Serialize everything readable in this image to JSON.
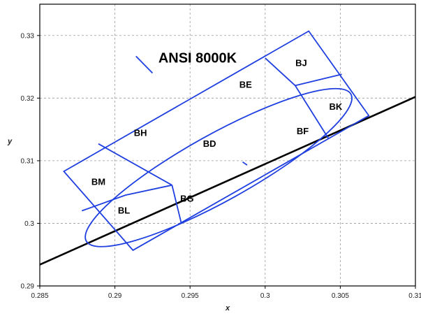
{
  "chart_data": {
    "type": "line",
    "title": "ANSI 8000K",
    "xlabel": "x",
    "ylabel": "y",
    "xlim": [
      0.285,
      0.31
    ],
    "ylim": [
      0.29,
      0.335
    ],
    "x_ticks": [
      0.285,
      0.29,
      0.295,
      0.3,
      0.305,
      0.31
    ],
    "x_tick_labels": [
      "0.285",
      "0.29",
      "0.295",
      "0.3",
      "0.305",
      "0.31"
    ],
    "y_ticks": [
      0.29,
      0.3,
      0.31,
      0.32,
      0.33
    ],
    "y_tick_labels": [
      "0.29",
      "0.3",
      "0.31",
      "0.32",
      "0.33"
    ],
    "grid": true,
    "colors": {
      "locus": "#000000",
      "quadrangles": "#1f3fe0",
      "grid": "#9a9a9a",
      "frame": "#000000"
    },
    "planckian_locus": [
      [
        0.285,
        0.2934
      ],
      [
        0.31,
        0.3202
      ]
    ],
    "outer_quadrangle": [
      [
        0.2866,
        0.3083
      ],
      [
        0.3029,
        0.3307
      ],
      [
        0.3069,
        0.3172
      ],
      [
        0.2912,
        0.2957
      ]
    ],
    "bin_lines": [
      [
        [
          0.2889,
          0.3127
        ],
        [
          0.2938,
          0.3061
        ]
      ],
      [
        [
          0.2938,
          0.3061
        ],
        [
          0.2907,
          0.3045
        ],
        [
          0.2878,
          0.302
        ]
      ],
      [
        [
          0.2938,
          0.3061
        ],
        [
          0.2944,
          0.3002
        ]
      ],
      [
        [
          0.2914,
          0.3267
        ],
        [
          0.2925,
          0.324
        ]
      ],
      [
        [
          0.3,
          0.3264
        ],
        [
          0.302,
          0.322
        ]
      ],
      [
        [
          0.302,
          0.322
        ],
        [
          0.3051,
          0.3238
        ]
      ],
      [
        [
          0.302,
          0.322
        ],
        [
          0.3042,
          0.3136
        ]
      ],
      [
        [
          0.2985,
          0.3098
        ],
        [
          0.2988,
          0.3093
        ]
      ]
    ],
    "ellipse": {
      "center": [
        0.2969,
        0.3089
      ],
      "semi_axes": [
        0.0106,
        0.0028
      ],
      "rotation_deg": 46
    },
    "bins": [
      {
        "label": "BD",
        "position": [
          0.2963,
          0.3128
        ]
      },
      {
        "label": "BE",
        "position": [
          0.2987,
          0.3222
        ]
      },
      {
        "label": "BF",
        "position": [
          0.3025,
          0.3148
        ]
      },
      {
        "label": "BG",
        "position": [
          0.2948,
          0.304
        ]
      },
      {
        "label": "BH",
        "position": [
          0.2917,
          0.3145
        ]
      },
      {
        "label": "BJ",
        "position": [
          0.3024,
          0.3257
        ]
      },
      {
        "label": "BK",
        "position": [
          0.3047,
          0.3187
        ]
      },
      {
        "label": "BL",
        "position": [
          0.2906,
          0.3021
        ]
      },
      {
        "label": "BM",
        "position": [
          0.2889,
          0.3067
        ]
      }
    ]
  }
}
